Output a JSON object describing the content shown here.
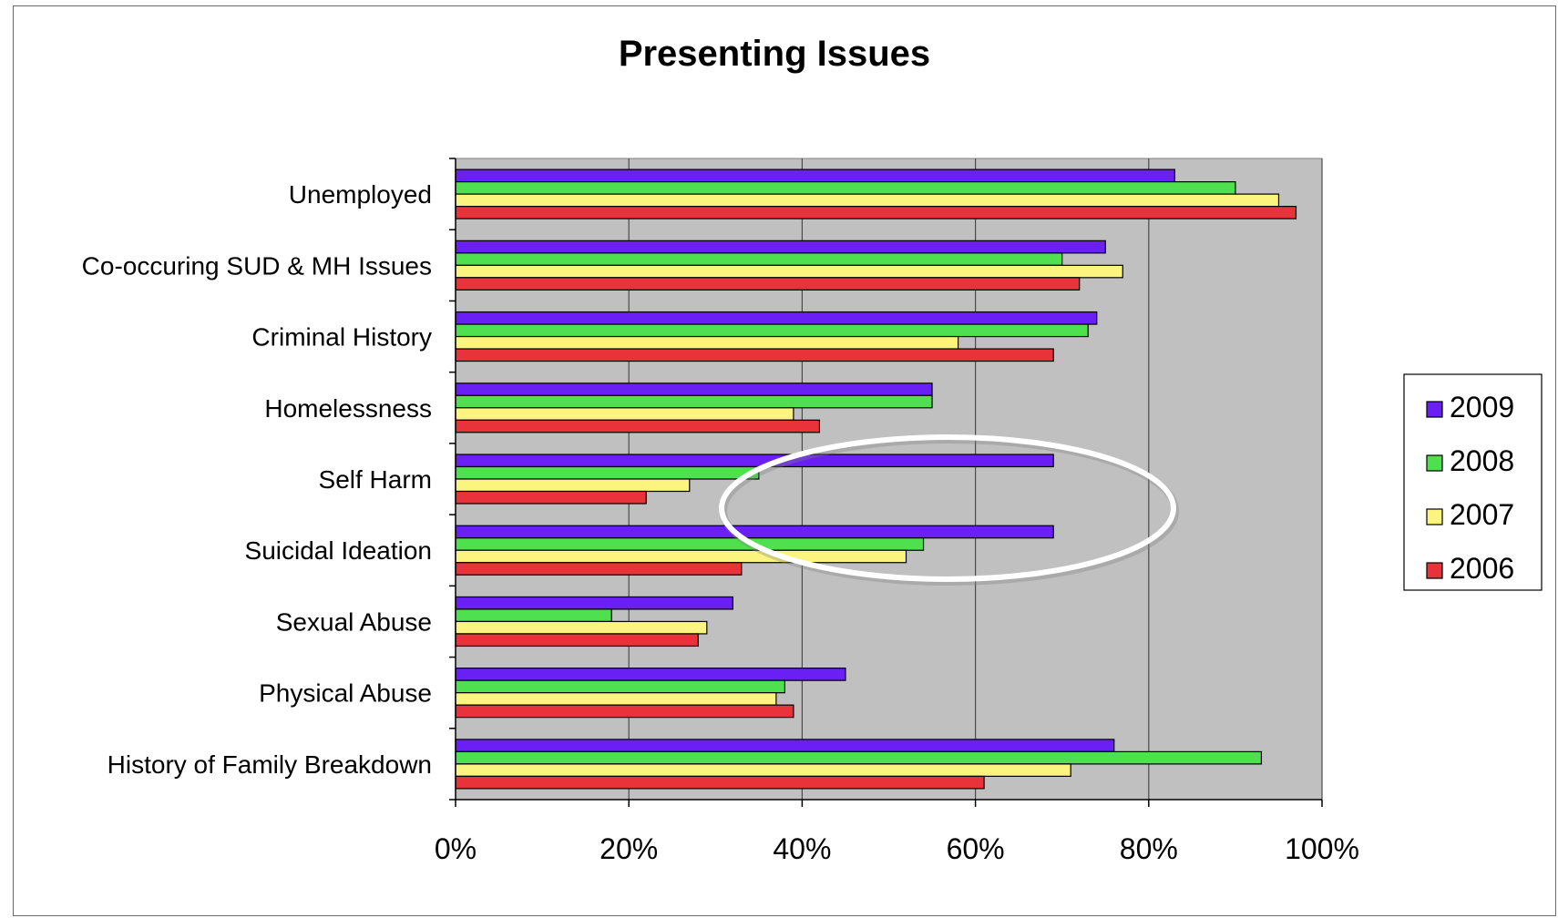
{
  "chart_data": {
    "type": "bar",
    "orientation": "horizontal",
    "title": "Presenting Issues",
    "xlabel": "",
    "ylabel": "",
    "xlim": [
      0,
      100
    ],
    "x_ticks": [
      "0%",
      "20%",
      "40%",
      "60%",
      "80%",
      "100%"
    ],
    "grid": "vertical",
    "legend_position": "right",
    "plot_background": "#c0c0c0",
    "categories": [
      "Unemployed",
      "Co-occuring SUD & MH Issues",
      "Criminal History",
      "Homelessness",
      "Self Harm",
      "Suicidal Ideation",
      "Sexual Abuse",
      "Physical Abuse",
      "History of Family Breakdown"
    ],
    "series": [
      {
        "name": "2009",
        "color": "#6a1ff5",
        "values": [
          83,
          75,
          74,
          55,
          69,
          69,
          32,
          45,
          76
        ]
      },
      {
        "name": "2008",
        "color": "#4fe04f",
        "values": [
          90,
          70,
          73,
          55,
          35,
          54,
          18,
          38,
          93
        ]
      },
      {
        "name": "2007",
        "color": "#fbf47e",
        "values": [
          95,
          77,
          58,
          39,
          27,
          52,
          29,
          37,
          71
        ]
      },
      {
        "name": "2006",
        "color": "#e8333a",
        "values": [
          97,
          72,
          69,
          42,
          22,
          33,
          28,
          39,
          61
        ]
      }
    ],
    "annotation": {
      "type": "ellipse-highlight",
      "color": "#ffffff",
      "categories": [
        "Self Harm",
        "Suicidal Ideation"
      ]
    }
  }
}
